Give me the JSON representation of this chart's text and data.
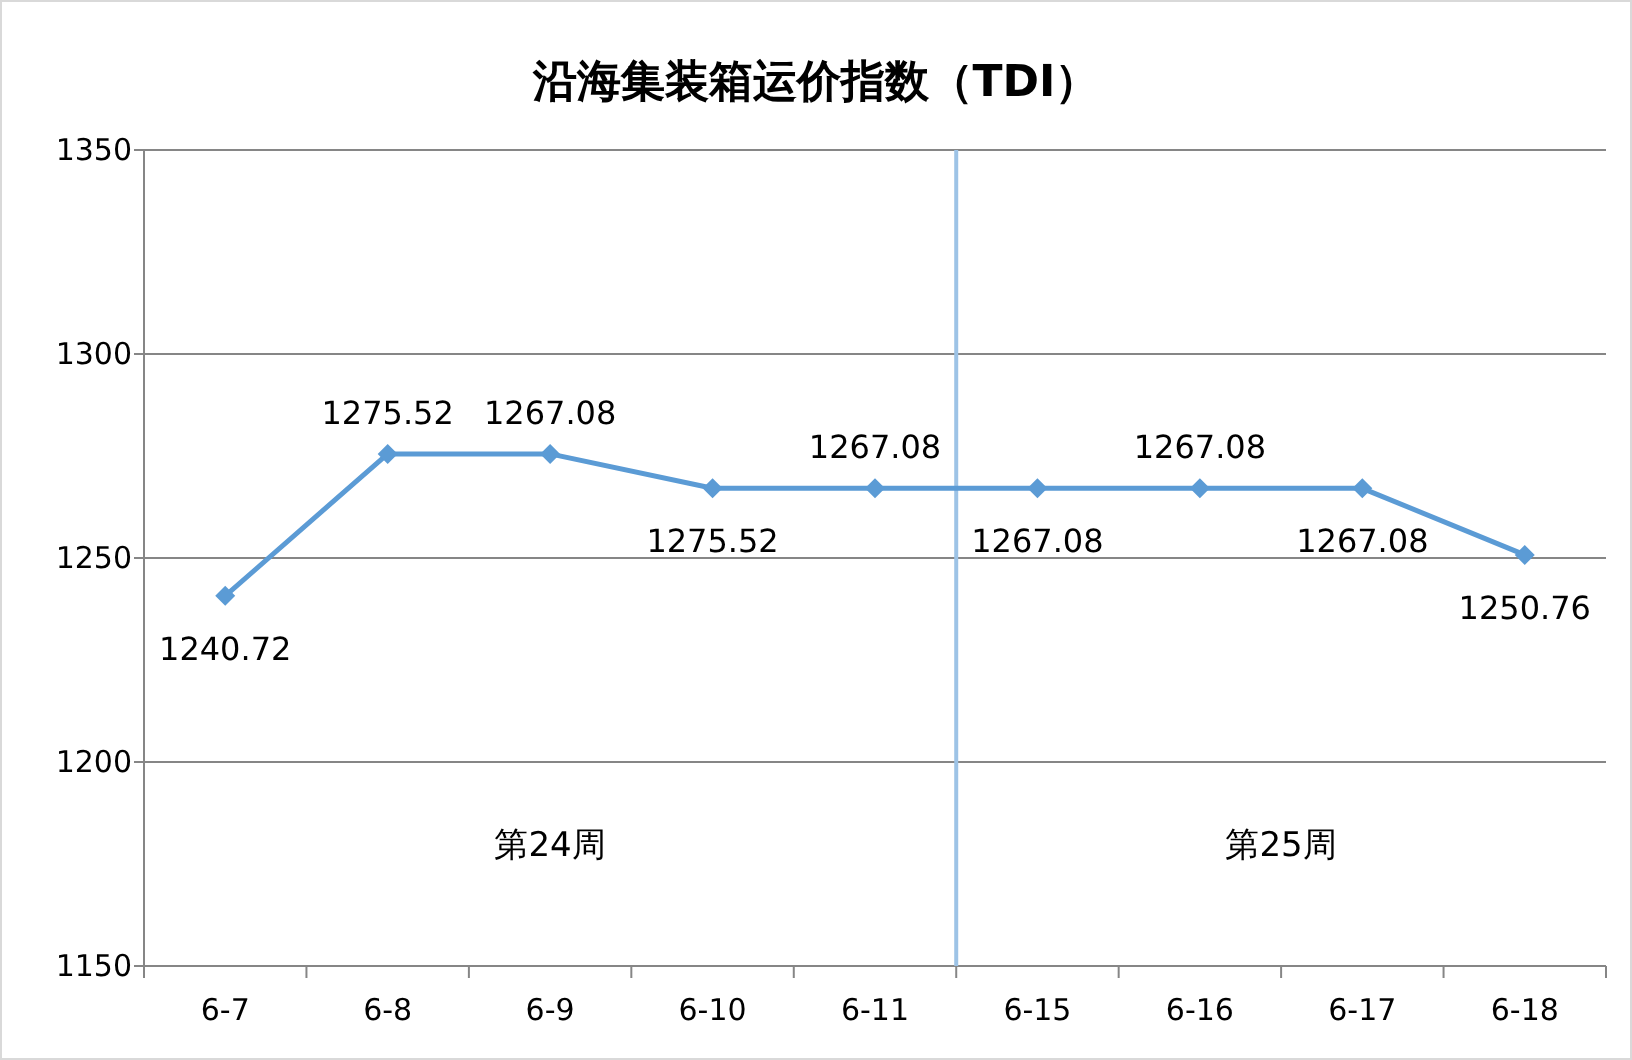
{
  "chart_data": {
    "type": "line",
    "title": "沿海集装箱运价指数（TDI）",
    "categories": [
      "6-7",
      "6-8",
      "6-9",
      "6-10",
      "6-11",
      "6-15",
      "6-16",
      "6-17",
      "6-18"
    ],
    "series": [
      {
        "color": "#5b9bd5",
        "values": [
          1240.72,
          1275.52,
          1275.52,
          1267.08,
          1267.08,
          1267.08,
          1267.08,
          1267.08,
          1250.76
        ],
        "value_labels": [
          "1240.72",
          "1275.52",
          null,
          null,
          "1267.08",
          "1267.08",
          "1267.08",
          "1267.08",
          "1250.76"
        ]
      }
    ],
    "ylim": [
      1150,
      1350
    ],
    "yticks": [
      1150,
      1200,
      1250,
      1300,
      1350
    ],
    "grid": "y",
    "marker": "diamond",
    "line_style": "solid",
    "ref_lines": [
      {
        "axis": "x",
        "value": "6-15",
        "color": "#9dc3e6"
      }
    ],
    "annotations": [
      "第24周",
      "第25周",
      "1267.08",
      "1275.52"
    ]
  }
}
